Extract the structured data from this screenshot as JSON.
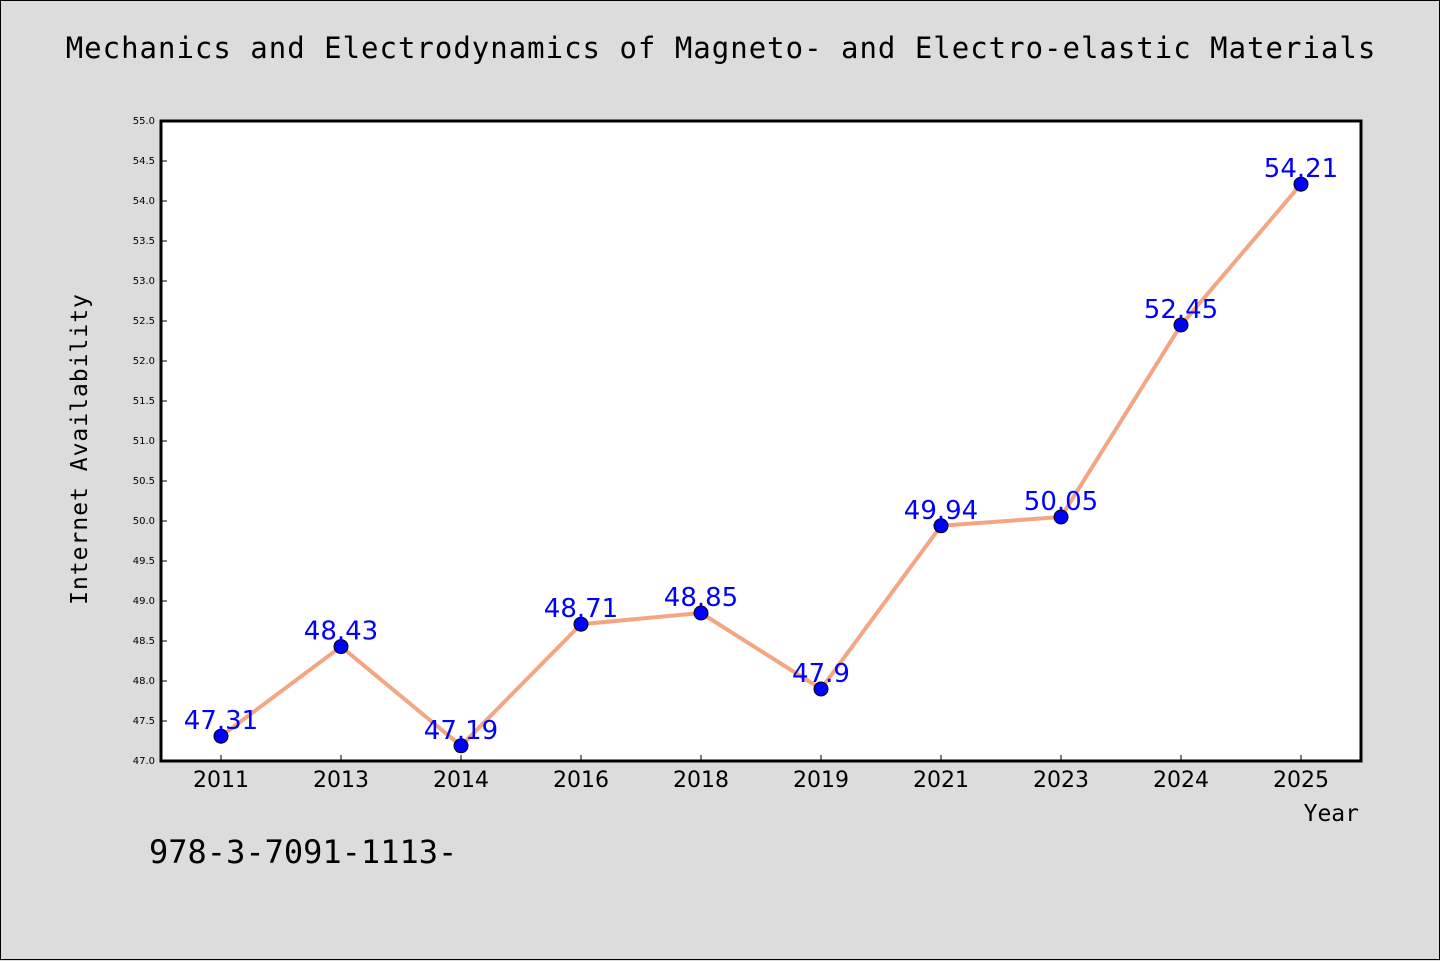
{
  "title": "Mechanics and Electrodynamics of Magneto- and Electro-elastic Materials",
  "footer_text": "978-3-7091-1113-",
  "chart_data": {
    "type": "line",
    "title": "Mechanics and Electrodynamics of Magneto- and Electro-elastic Materials",
    "xlabel": "Year",
    "ylabel": "Internet Availability",
    "categories": [
      "2011",
      "2013",
      "2014",
      "2016",
      "2018",
      "2019",
      "2021",
      "2023",
      "2024",
      "2025"
    ],
    "values": [
      47.31,
      48.43,
      47.19,
      48.71,
      48.85,
      47.9,
      49.94,
      50.05,
      52.45,
      54.21
    ],
    "data_labels": [
      "47.31",
      "48.43",
      "47.19",
      "48.71",
      "48.85",
      "47.9",
      "49.94",
      "50.05",
      "52.45",
      "54.21"
    ],
    "ylim": [
      47.0,
      55.0
    ],
    "yticks": [
      "47.0",
      "47.5",
      "48.0",
      "48.5",
      "49.0",
      "49.5",
      "50.0",
      "50.5",
      "51.0",
      "51.5",
      "52.0",
      "52.5",
      "53.0",
      "53.5",
      "54.0",
      "54.5",
      "55.0"
    ],
    "grid": false,
    "line_color": "#f4a582",
    "marker_color": "#0000ff",
    "label_color": "#0000ff"
  }
}
